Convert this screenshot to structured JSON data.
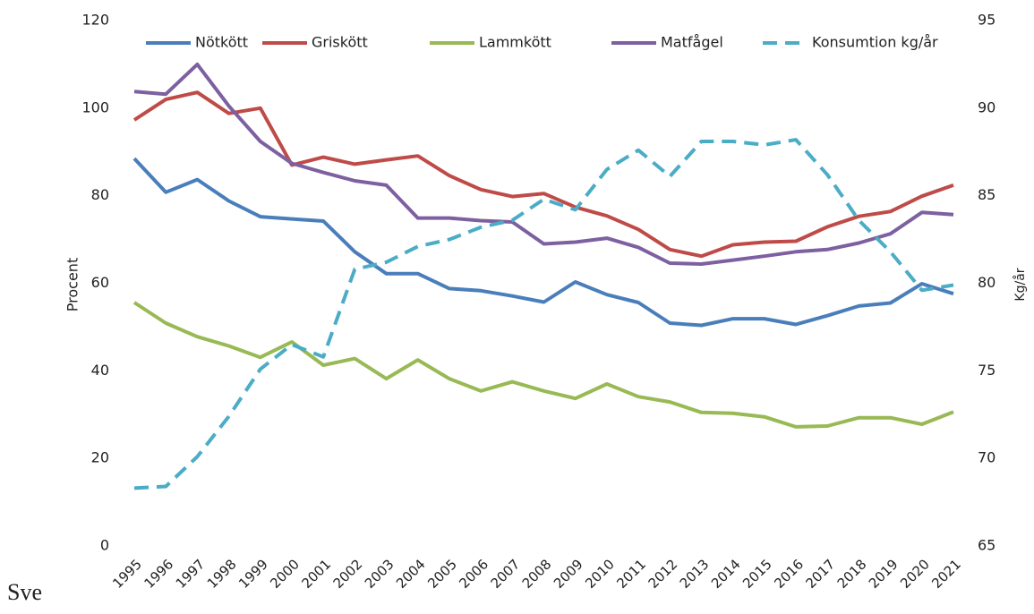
{
  "chart_data": {
    "type": "line",
    "categories": [
      "1995",
      "1996",
      "1997",
      "1998",
      "1999",
      "2000",
      "2001",
      "2002",
      "2003",
      "2004",
      "2005",
      "2006",
      "2007",
      "2008",
      "2009",
      "2010",
      "2011",
      "2012",
      "2013",
      "2014",
      "2015",
      "2016",
      "2017",
      "2018",
      "2019",
      "2020",
      "2021"
    ],
    "y_label": "Procent",
    "y2_label": "Kg/år",
    "ylim": [
      0,
      120
    ],
    "yticks": [
      0,
      20,
      40,
      60,
      80,
      100,
      120
    ],
    "y2lim": [
      65,
      95
    ],
    "y2ticks": [
      65,
      70,
      75,
      80,
      85,
      90,
      95
    ],
    "legend": "top",
    "series": [
      {
        "name": "Nötkött",
        "color": "#4a7ebb",
        "values": [
          88.5,
          80.8,
          83.7,
          78.8,
          75.2,
          74.7,
          74.2,
          67.2,
          62.2,
          62.2,
          58.8,
          58.3,
          57.1,
          55.7,
          60.3,
          57.4,
          55.6,
          50.9,
          50.4,
          51.9,
          51.9,
          50.6,
          52.6,
          54.8,
          55.5,
          59.9,
          57.6
        ]
      },
      {
        "name": "Griskött",
        "color": "#be4b48",
        "values": [
          97.3,
          102,
          103.6,
          98.8,
          100,
          87,
          88.8,
          87.2,
          88.2,
          89.1,
          84.6,
          81.4,
          79.8,
          80.5,
          77.4,
          75.4,
          72.3,
          67.7,
          66.2,
          68.8,
          69.4,
          69.6,
          72.9,
          75.3,
          76.4,
          79.9,
          82.4
        ]
      },
      {
        "name": "Lammkött",
        "color": "#98b954",
        "values": [
          55.6,
          50.9,
          47.8,
          45.7,
          43.1,
          46.6,
          41.3,
          42.8,
          38.2,
          42.5,
          38.2,
          35.4,
          37.5,
          35.4,
          33.7,
          37,
          34.1,
          32.9,
          30.5,
          30.3,
          29.5,
          27.2,
          27.4,
          29.3,
          29.3,
          27.8,
          30.6
        ]
      },
      {
        "name": "Matfågel",
        "color": "#7d60a0",
        "values": [
          103.8,
          103.2,
          110,
          100.5,
          92.4,
          87.4,
          85.3,
          83.4,
          82.4,
          74.9,
          74.9,
          74.3,
          74.0,
          69.0,
          69.4,
          70.3,
          68.2,
          64.6,
          64.4,
          65.3,
          66.2,
          67.2,
          67.7,
          69.2,
          71.3,
          76.2,
          75.7
        ]
      },
      {
        "name": "Konsumtion kg/år",
        "color": "#4bacc6",
        "dashed": true,
        "axis": "y2",
        "values": [
          68.3,
          68.4,
          70.1,
          72.4,
          75.1,
          76.5,
          75.8,
          80.8,
          81.2,
          82.1,
          82.5,
          83.2,
          83.6,
          84.8,
          84.2,
          86.5,
          87.6,
          86.1,
          88.1,
          88.1,
          87.9,
          88.2,
          86.2,
          83.6,
          81.8,
          79.6,
          79.9
        ]
      }
    ]
  },
  "footer": "Sve"
}
